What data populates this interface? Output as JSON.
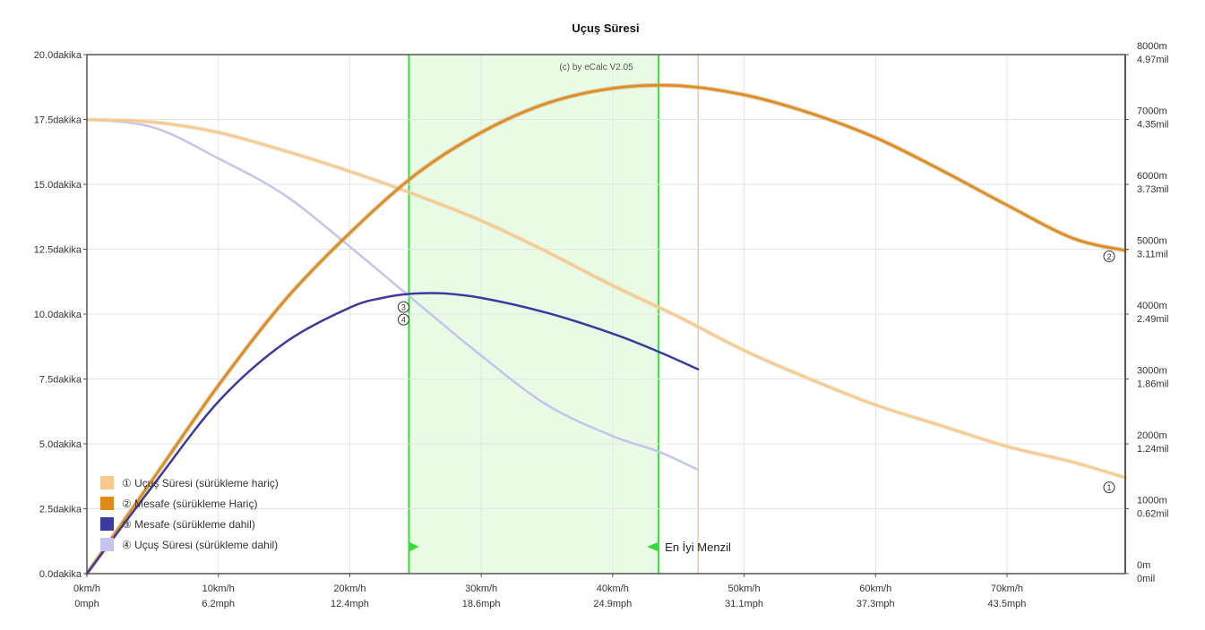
{
  "chart_data": {
    "type": "line",
    "title": "Uçuş Süresi",
    "watermark": "(c) by eCalc  V2.05",
    "x_unit": "km/h",
    "x_range": [
      0,
      79
    ],
    "x_ticks": [
      {
        "v": 0,
        "kmh": "0km/h",
        "mph": "0mph"
      },
      {
        "v": 10,
        "kmh": "10km/h",
        "mph": "6.2mph"
      },
      {
        "v": 20,
        "kmh": "20km/h",
        "mph": "12.4mph"
      },
      {
        "v": 30,
        "kmh": "30km/h",
        "mph": "18.6mph"
      },
      {
        "v": 40,
        "kmh": "40km/h",
        "mph": "24.9mph"
      },
      {
        "v": 50,
        "kmh": "50km/h",
        "mph": "31.1mph"
      },
      {
        "v": 60,
        "kmh": "60km/h",
        "mph": "37.3mph"
      },
      {
        "v": 70,
        "kmh": "70km/h",
        "mph": "43.5mph"
      }
    ],
    "y_left_unit": "dakika",
    "y_left_range": [
      0,
      20
    ],
    "y_left_ticks": [
      {
        "v": 0,
        "label": "0.0dakika"
      },
      {
        "v": 2.5,
        "label": "2.5dakika"
      },
      {
        "v": 5,
        "label": "5.0dakika"
      },
      {
        "v": 7.5,
        "label": "7.5dakika"
      },
      {
        "v": 10,
        "label": "10.0dakika"
      },
      {
        "v": 12.5,
        "label": "12.5dakika"
      },
      {
        "v": 15,
        "label": "15.0dakika"
      },
      {
        "v": 17.5,
        "label": "17.5dakika"
      },
      {
        "v": 20,
        "label": "20.0dakika"
      }
    ],
    "y_right_unit": "m",
    "y_right_range": [
      0,
      8000
    ],
    "y_right_ticks": [
      {
        "v": 0,
        "m": "0m",
        "mil": "0mil"
      },
      {
        "v": 1000,
        "m": "1000m",
        "mil": "0.62mil"
      },
      {
        "v": 2000,
        "m": "2000m",
        "mil": "1.24mil"
      },
      {
        "v": 3000,
        "m": "3000m",
        "mil": "1.86mil"
      },
      {
        "v": 4000,
        "m": "4000m",
        "mil": "2.49mil"
      },
      {
        "v": 5000,
        "m": "5000m",
        "mil": "3.11mil"
      },
      {
        "v": 6000,
        "m": "6000m",
        "mil": "3.73mil"
      },
      {
        "v": 7000,
        "m": "7000m",
        "mil": "4.35mil"
      },
      {
        "v": 8000,
        "m": "8000m",
        "mil": "4.97mil"
      }
    ],
    "grid": true,
    "legend_position": "bottom-left",
    "series": [
      {
        "name": "① Uçuş Süresi (sürükleme hariç)",
        "axis": "left",
        "color": "#f8c98a",
        "marker": "①",
        "x": [
          0,
          5,
          10,
          15,
          20,
          25,
          30,
          35,
          40,
          45,
          50,
          55,
          60,
          65,
          70,
          75,
          79
        ],
        "y": [
          17.5,
          17.4,
          17.0,
          16.3,
          15.5,
          14.6,
          13.6,
          12.4,
          11.1,
          9.9,
          8.6,
          7.5,
          6.5,
          5.7,
          4.9,
          4.3,
          3.7
        ]
      },
      {
        "name": "② Mesafe (sürükleme Hariç)",
        "axis": "right",
        "color": "#e08a17",
        "marker": "②",
        "x": [
          0,
          5,
          10,
          15,
          20,
          25,
          30,
          35,
          40,
          45,
          50,
          55,
          60,
          65,
          70,
          75,
          79
        ],
        "y": [
          0,
          1450,
          2900,
          4200,
          5250,
          6150,
          6800,
          7250,
          7480,
          7520,
          7380,
          7100,
          6720,
          6220,
          5680,
          5170,
          4980
        ]
      },
      {
        "name": "③ Mesafe (sürükleme dahil)",
        "axis": "right",
        "color": "#3a3aa0",
        "marker": "③",
        "x": [
          0,
          5,
          10,
          15,
          20,
          22.5,
          24.5,
          27,
          30,
          35,
          40,
          43.5,
          46.5
        ],
        "y": [
          0,
          1350,
          2650,
          3550,
          4100,
          4250,
          4310,
          4320,
          4250,
          4020,
          3700,
          3420,
          3150
        ]
      },
      {
        "name": "④ Uçuş Süresi (sürükleme dahil)",
        "axis": "left",
        "color": "#c4c4ec",
        "marker": "④",
        "x": [
          0,
          5,
          10,
          15,
          20,
          24.5,
          30,
          35,
          40,
          43.5,
          46.5
        ],
        "y": [
          17.5,
          17.2,
          16.0,
          14.6,
          12.6,
          10.7,
          8.4,
          6.5,
          5.3,
          4.7,
          4.0
        ]
      }
    ],
    "markers_at": {
      "s1": [
        79,
        3.6
      ],
      "s2": [
        79,
        4850
      ],
      "s34": [
        24.5,
        4150
      ]
    },
    "highlight": {
      "label": "En İyi Menzil",
      "x_start": 24.5,
      "x_end": 43.5,
      "fill": "#e9fbe4",
      "line_color": "#33dd33"
    },
    "extra_vline": {
      "x": 46.5,
      "color": "#f5c79d"
    }
  }
}
